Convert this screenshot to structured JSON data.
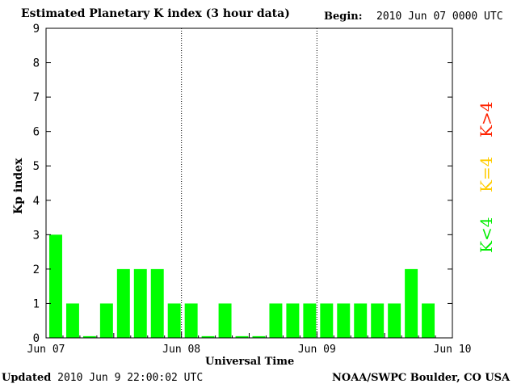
{
  "header": {
    "title": "Estimated Planetary K index (3 hour data)",
    "begin_label": "Begin:",
    "begin_value": "2010 Jun 07 0000 UTC"
  },
  "footer": {
    "updated_label": "Updated",
    "updated_value": "2010 Jun  9 22:00:02 UTC",
    "source": "NOAA/SWPC Boulder, CO USA"
  },
  "legend": {
    "items": [
      {
        "label": "K<4",
        "color": "#00ee00"
      },
      {
        "label": "K=4",
        "color": "#ffcc00"
      },
      {
        "label": "K>4",
        "color": "#ff2200"
      }
    ]
  },
  "chart_data": {
    "type": "bar",
    "xlabel": "Universal Time",
    "ylabel": "Kp index",
    "ylim": [
      0,
      9
    ],
    "yticks": [
      "0",
      "1",
      "2",
      "3",
      "4",
      "5",
      "6",
      "7",
      "8",
      "9"
    ],
    "xticks": [
      "Jun 07",
      "Jun 08",
      "Jun 09",
      "Jun 10"
    ],
    "day_dividers": [
      "Jun 08",
      "Jun 09"
    ],
    "values": [
      3,
      1,
      0.05,
      1,
      2,
      2,
      2,
      1,
      1,
      0.05,
      1,
      0.05,
      0.05,
      1,
      1,
      1,
      1,
      1,
      1,
      1,
      1,
      2,
      1
    ],
    "bar_color": "#00ff00",
    "grid": false
  }
}
